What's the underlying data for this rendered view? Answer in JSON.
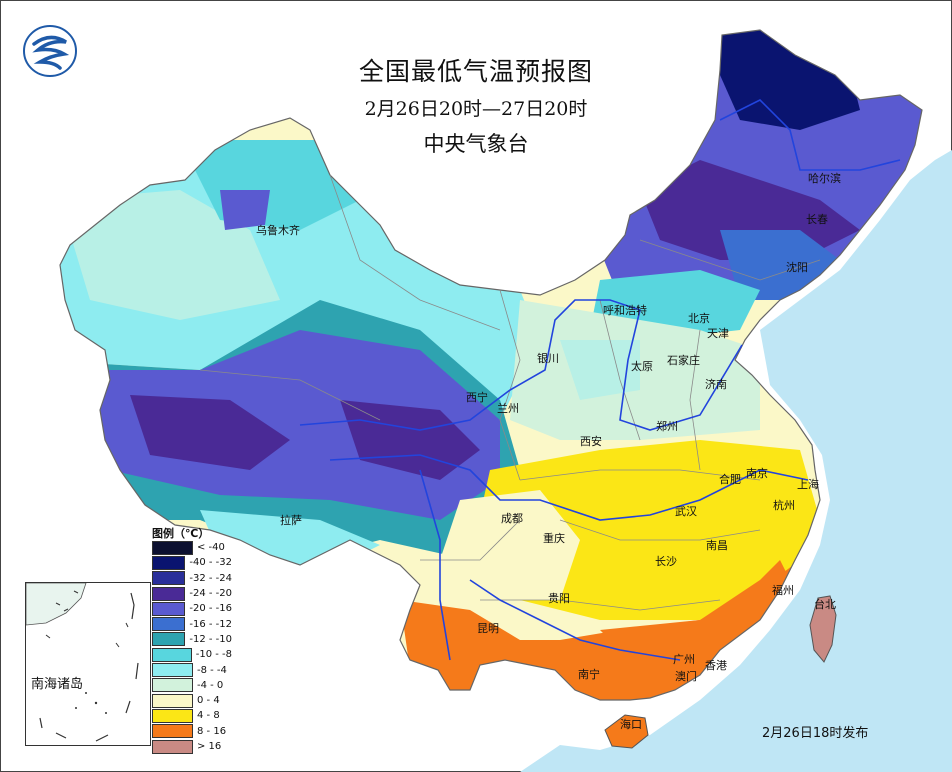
{
  "title": "全国最低气温预报图",
  "subtitle": "2月26日20时—27日20时",
  "organization": "中央气象台",
  "issued": "2月26日18时发布",
  "inset_label": "南海诸岛",
  "legend": {
    "title": "图例（℃）",
    "items": [
      {
        "label": "< -40",
        "color": "#0c1030"
      },
      {
        "label": "-40 - -32",
        "color": "#0a1470"
      },
      {
        "label": "-32 - -24",
        "color": "#2a2f9a"
      },
      {
        "label": "-24 - -20",
        "color": "#4a2a96"
      },
      {
        "label": "-20 - -16",
        "color": "#5a5ad0"
      },
      {
        "label": "-16 - -12",
        "color": "#3b6fd0"
      },
      {
        "label": "-12 - -10",
        "color": "#2ea3b0"
      },
      {
        "label": "-10 - -8",
        "color": "#58d6de"
      },
      {
        "label": "-8 - -4",
        "color": "#8eecf0"
      },
      {
        "label": "-4 - 0",
        "color": "#d2f2dc"
      },
      {
        "label": "0 - 4",
        "color": "#fbf8c8"
      },
      {
        "label": "4 - 8",
        "color": "#fbe616"
      },
      {
        "label": "8 - 16",
        "color": "#f57a1a"
      },
      {
        "label": "> 16",
        "color": "#c98a84"
      }
    ]
  },
  "cities": [
    {
      "name": "哈尔滨",
      "key": "harbin"
    },
    {
      "name": "长春",
      "key": "changchun"
    },
    {
      "name": "沈阳",
      "key": "shenyang"
    },
    {
      "name": "乌鲁木齐",
      "key": "urumqi"
    },
    {
      "name": "呼和浩特",
      "key": "hohhot"
    },
    {
      "name": "北京",
      "key": "beijing"
    },
    {
      "name": "天津",
      "key": "tianjin"
    },
    {
      "name": "银川",
      "key": "yinchuan"
    },
    {
      "name": "太原",
      "key": "taiyuan"
    },
    {
      "name": "石家庄",
      "key": "shijiazhuang"
    },
    {
      "name": "济南",
      "key": "jinan"
    },
    {
      "name": "西宁",
      "key": "xining"
    },
    {
      "name": "兰州",
      "key": "lanzhou"
    },
    {
      "name": "西安",
      "key": "xian"
    },
    {
      "name": "郑州",
      "key": "zhengzhou"
    },
    {
      "name": "合肥",
      "key": "hefei"
    },
    {
      "name": "南京",
      "key": "nanjing"
    },
    {
      "name": "上海",
      "key": "shanghai"
    },
    {
      "name": "武汉",
      "key": "wuhan"
    },
    {
      "name": "杭州",
      "key": "hangzhou"
    },
    {
      "name": "拉萨",
      "key": "lhasa"
    },
    {
      "name": "成都",
      "key": "chengdu"
    },
    {
      "name": "重庆",
      "key": "chongqing"
    },
    {
      "name": "长沙",
      "key": "changsha"
    },
    {
      "name": "南昌",
      "key": "nanchang"
    },
    {
      "name": "贵阳",
      "key": "guiyang"
    },
    {
      "name": "昆明",
      "key": "kunming"
    },
    {
      "name": "福州",
      "key": "fuzhou"
    },
    {
      "name": "台北",
      "key": "taipei"
    },
    {
      "name": "南宁",
      "key": "nanning"
    },
    {
      "name": "广州",
      "key": "guangzhou"
    },
    {
      "name": "香港",
      "key": "hongkong"
    },
    {
      "name": "澳门",
      "key": "macau"
    },
    {
      "name": "海口",
      "key": "haikou"
    }
  ]
}
